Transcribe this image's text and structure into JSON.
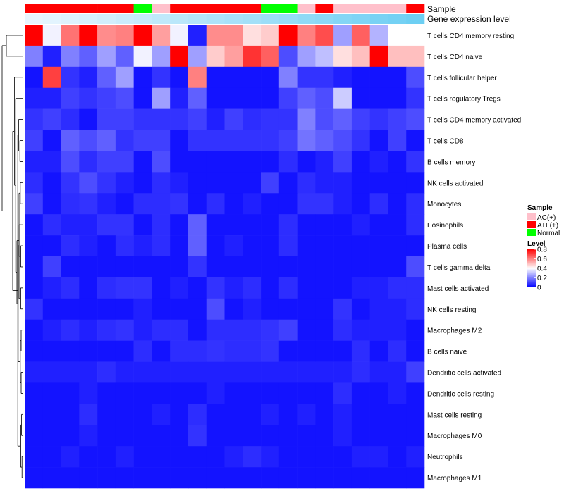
{
  "chart_data": {
    "type": "heatmap",
    "title": "",
    "annotation_rows": [
      {
        "label": "Sample",
        "values": [
          "ATL(+)",
          "ATL(+)",
          "ATL(+)",
          "ATL(+)",
          "ATL(+)",
          "ATL(+)",
          "Normal",
          "AC(+)",
          "ATL(+)",
          "ATL(+)",
          "ATL(+)",
          "ATL(+)",
          "ATL(+)",
          "Normal",
          "Normal",
          "AC(+)",
          "ATL(+)",
          "AC(+)",
          "AC(+)",
          "AC(+)",
          "AC(+)",
          "ATL(+)"
        ]
      },
      {
        "label": "Gene expression level",
        "values": [
          0.05,
          0.08,
          0.11,
          0.15,
          0.18,
          0.22,
          0.25,
          0.29,
          0.32,
          0.36,
          0.39,
          0.43,
          0.46,
          0.5,
          0.53,
          0.57,
          0.6,
          0.64,
          0.67,
          0.71,
          0.74,
          0.78
        ]
      }
    ],
    "rows": [
      "T cells CD4 memory resting",
      "T cells CD4 naive",
      "T cells follicular helper",
      "T cells regulatory  Tregs",
      "T cells CD4 memory activated",
      "T cells CD8",
      "B cells memory",
      "NK cells activated",
      "Monocytes",
      "Eosinophils",
      "Plasma cells",
      "T cells gamma delta",
      "Mast cells activated",
      "NK cells resting",
      "Macrophages M2",
      "B cells naive",
      "Dendritic cells activated",
      "Dendritic cells resting",
      "Mast cells resting",
      "Macrophages M0",
      "Neutrophils",
      "Macrophages M1"
    ],
    "values": [
      [
        0.82,
        0.38,
        0.62,
        0.8,
        0.58,
        0.6,
        0.8,
        0.55,
        0.38,
        0.05,
        0.58,
        0.58,
        0.45,
        0.48,
        0.82,
        0.6,
        0.68,
        0.25,
        0.65,
        0.28,
        0.4,
        0.4
      ],
      [
        0.2,
        0.05,
        0.2,
        0.15,
        0.25,
        0.15,
        0.38,
        0.25,
        0.8,
        0.25,
        0.48,
        0.55,
        0.72,
        0.65,
        0.12,
        0.25,
        0.3,
        0.45,
        0.5,
        0.8,
        0.5,
        0.5
      ],
      [
        0.03,
        0.7,
        0.08,
        0.05,
        0.15,
        0.25,
        0.03,
        0.08,
        0.03,
        0.6,
        0.03,
        0.03,
        0.03,
        0.03,
        0.2,
        0.08,
        0.08,
        0.05,
        0.03,
        0.03,
        0.03,
        0.12
      ],
      [
        0.05,
        0.05,
        0.1,
        0.08,
        0.1,
        0.12,
        0.03,
        0.25,
        0.05,
        0.15,
        0.03,
        0.03,
        0.03,
        0.03,
        0.1,
        0.15,
        0.12,
        0.32,
        0.03,
        0.03,
        0.03,
        0.08
      ],
      [
        0.08,
        0.1,
        0.07,
        0.03,
        0.1,
        0.1,
        0.08,
        0.08,
        0.08,
        0.1,
        0.05,
        0.1,
        0.07,
        0.08,
        0.08,
        0.2,
        0.12,
        0.15,
        0.1,
        0.08,
        0.1,
        0.12
      ],
      [
        0.1,
        0.03,
        0.15,
        0.12,
        0.15,
        0.08,
        0.1,
        0.1,
        0.03,
        0.08,
        0.08,
        0.08,
        0.08,
        0.08,
        0.1,
        0.18,
        0.15,
        0.12,
        0.08,
        0.03,
        0.1,
        0.03
      ],
      [
        0.05,
        0.05,
        0.12,
        0.07,
        0.1,
        0.1,
        0.03,
        0.12,
        0.03,
        0.03,
        0.03,
        0.03,
        0.03,
        0.03,
        0.07,
        0.03,
        0.05,
        0.1,
        0.03,
        0.05,
        0.03,
        0.08
      ],
      [
        0.07,
        0.03,
        0.08,
        0.12,
        0.08,
        0.05,
        0.03,
        0.07,
        0.05,
        0.03,
        0.03,
        0.03,
        0.03,
        0.1,
        0.03,
        0.07,
        0.05,
        0.05,
        0.03,
        0.03,
        0.03,
        0.03
      ],
      [
        0.1,
        0.03,
        0.07,
        0.08,
        0.05,
        0.03,
        0.07,
        0.07,
        0.08,
        0.03,
        0.07,
        0.03,
        0.05,
        0.03,
        0.03,
        0.08,
        0.08,
        0.05,
        0.03,
        0.07,
        0.03,
        0.07
      ],
      [
        0.03,
        0.07,
        0.05,
        0.05,
        0.08,
        0.08,
        0.03,
        0.07,
        0.03,
        0.15,
        0.03,
        0.03,
        0.03,
        0.03,
        0.07,
        0.03,
        0.03,
        0.03,
        0.05,
        0.03,
        0.03,
        0.07
      ],
      [
        0.03,
        0.03,
        0.07,
        0.05,
        0.03,
        0.07,
        0.05,
        0.07,
        0.03,
        0.15,
        0.03,
        0.05,
        0.03,
        0.03,
        0.07,
        0.03,
        0.03,
        0.03,
        0.03,
        0.03,
        0.03,
        0.03
      ],
      [
        0.03,
        0.1,
        0.03,
        0.03,
        0.03,
        0.03,
        0.03,
        0.03,
        0.03,
        0.08,
        0.03,
        0.03,
        0.03,
        0.03,
        0.03,
        0.03,
        0.03,
        0.03,
        0.03,
        0.03,
        0.03,
        0.12
      ],
      [
        0.03,
        0.05,
        0.07,
        0.03,
        0.07,
        0.08,
        0.08,
        0.03,
        0.05,
        0.03,
        0.08,
        0.05,
        0.07,
        0.03,
        0.07,
        0.03,
        0.03,
        0.03,
        0.05,
        0.05,
        0.07,
        0.07
      ],
      [
        0.08,
        0.03,
        0.03,
        0.03,
        0.03,
        0.03,
        0.05,
        0.03,
        0.03,
        0.03,
        0.12,
        0.03,
        0.05,
        0.03,
        0.03,
        0.03,
        0.03,
        0.08,
        0.03,
        0.05,
        0.05,
        0.07
      ],
      [
        0.03,
        0.05,
        0.07,
        0.05,
        0.07,
        0.08,
        0.05,
        0.07,
        0.07,
        0.03,
        0.07,
        0.07,
        0.07,
        0.08,
        0.1,
        0.03,
        0.03,
        0.07,
        0.05,
        0.05,
        0.05,
        0.03
      ],
      [
        0.03,
        0.03,
        0.03,
        0.03,
        0.03,
        0.03,
        0.07,
        0.03,
        0.07,
        0.07,
        0.08,
        0.07,
        0.07,
        0.08,
        0.03,
        0.03,
        0.03,
        0.03,
        0.07,
        0.03,
        0.07,
        0.03
      ],
      [
        0.05,
        0.05,
        0.05,
        0.05,
        0.07,
        0.05,
        0.05,
        0.05,
        0.05,
        0.05,
        0.05,
        0.05,
        0.05,
        0.05,
        0.05,
        0.05,
        0.05,
        0.05,
        0.07,
        0.05,
        0.05,
        0.1
      ],
      [
        0.03,
        0.03,
        0.03,
        0.05,
        0.03,
        0.03,
        0.03,
        0.03,
        0.03,
        0.03,
        0.05,
        0.03,
        0.03,
        0.03,
        0.03,
        0.03,
        0.03,
        0.07,
        0.03,
        0.03,
        0.05,
        0.03
      ],
      [
        0.03,
        0.03,
        0.03,
        0.07,
        0.03,
        0.03,
        0.03,
        0.05,
        0.03,
        0.07,
        0.03,
        0.03,
        0.03,
        0.05,
        0.03,
        0.05,
        0.03,
        0.05,
        0.03,
        0.03,
        0.03,
        0.03
      ],
      [
        0.03,
        0.03,
        0.03,
        0.05,
        0.03,
        0.03,
        0.03,
        0.03,
        0.03,
        0.08,
        0.03,
        0.03,
        0.03,
        0.03,
        0.03,
        0.03,
        0.03,
        0.05,
        0.03,
        0.03,
        0.03,
        0.03
      ],
      [
        0.03,
        0.03,
        0.05,
        0.03,
        0.03,
        0.05,
        0.03,
        0.03,
        0.03,
        0.03,
        0.03,
        0.05,
        0.07,
        0.05,
        0.03,
        0.03,
        0.03,
        0.03,
        0.05,
        0.05,
        0.03,
        0.05
      ],
      [
        0.03,
        0.03,
        0.03,
        0.03,
        0.03,
        0.03,
        0.03,
        0.03,
        0.03,
        0.03,
        0.03,
        0.03,
        0.03,
        0.03,
        0.03,
        0.03,
        0.03,
        0.03,
        0.03,
        0.03,
        0.03,
        0.03
      ]
    ],
    "color_scale": {
      "min": 0,
      "max": 0.8,
      "colors": [
        "#0000ff",
        "#ffffff",
        "#ff0000"
      ]
    },
    "sample_colors": {
      "AC(+)": "#ffc0cb",
      "ATL(+)": "#ff0000",
      "Normal": "#00ff00"
    },
    "expr_colors": {
      "low": "#f0f8ff",
      "high": "#48c3f0"
    },
    "legend": {
      "sample_title": "Sample",
      "sample_entries": [
        "AC(+)",
        "ATL(+)",
        "Normal"
      ],
      "level_title": "Level",
      "level_ticks": [
        "0.8",
        "0.6",
        "0.4",
        "0.2",
        "0"
      ],
      "level_tick_values": [
        0.8,
        0.6,
        0.4,
        0.2,
        0
      ],
      "position": "right"
    },
    "row_dendrogram": {
      "merges": [
        [
          5,
          6,
          0.16
        ],
        [
          7,
          8,
          0.14
        ],
        [
          10,
          11,
          0.12
        ],
        [
          12,
          13,
          0.12
        ],
        [
          14,
          15,
          0.1
        ],
        [
          16,
          17,
          0.1
        ],
        [
          18,
          19,
          0.08
        ],
        [
          20,
          21,
          0.06
        ],
        [
          9,
          "m2",
          0.2
        ],
        [
          4,
          "m0",
          0.22
        ],
        [
          "m1",
          "m3",
          0.2
        ],
        [
          "m4",
          "m5",
          0.14
        ],
        [
          "m6",
          "m7",
          0.12
        ],
        [
          "m10",
          "m11",
          0.24
        ],
        [
          "m9",
          "m12",
          0.26
        ],
        [
          "m13",
          "m8",
          0.3
        ],
        [
          3,
          "m15",
          0.36
        ],
        [
          2,
          "m16",
          0.42
        ],
        [
          "m14",
          "m17",
          0.5
        ],
        [
          0,
          1,
          0.8
        ],
        [
          "m18",
          "m19",
          1.0
        ]
      ]
    }
  }
}
